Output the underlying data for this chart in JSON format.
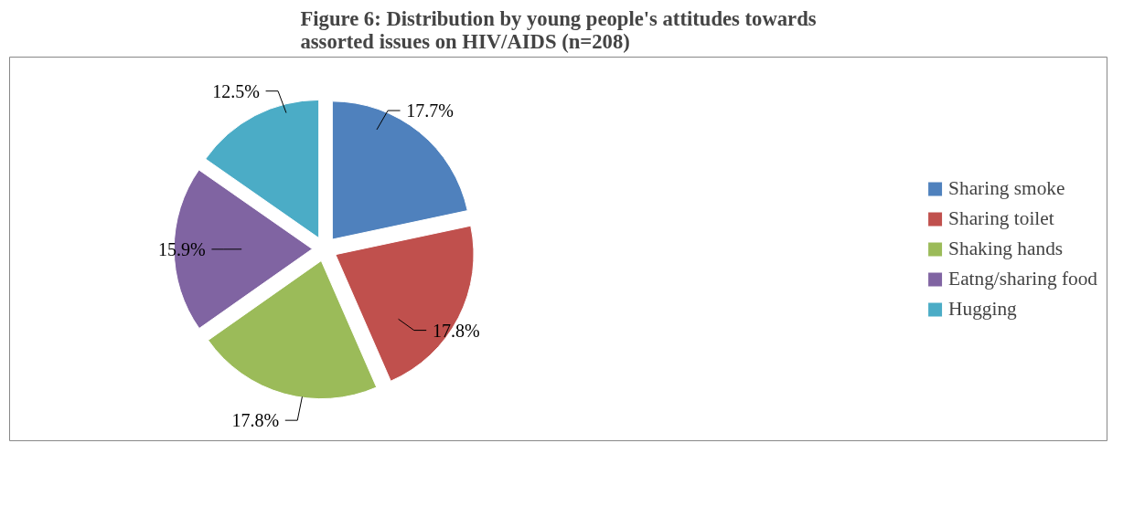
{
  "chart_data": {
    "type": "pie",
    "title": "Figure 6: Distribution by young people's attitudes towards assorted issues on HIV/AIDS (n=208)",
    "categories": [
      "Sharing smoke",
      "Sharing toilet",
      "Shaking hands",
      "Eatng/sharing food",
      "Hugging"
    ],
    "values": [
      17.7,
      17.8,
      17.8,
      15.9,
      12.5
    ],
    "value_labels": [
      "17.7%",
      "17.8%",
      "17.8%",
      "15.9%",
      "12.5%"
    ],
    "colors": [
      "#4f81bd",
      "#c0504d",
      "#9bbb59",
      "#8064a2",
      "#4bacc6"
    ],
    "legend": "right"
  }
}
